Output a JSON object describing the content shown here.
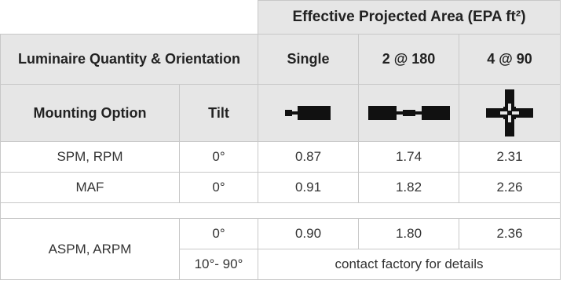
{
  "header": {
    "epa_title": "Effective Projected Area (EPA ft²)",
    "luminaire_label": "Luminaire Quantity & Orientation",
    "mounting_label": "Mounting Option",
    "tilt_label": "Tilt",
    "columns": [
      "Single",
      "2 @ 180",
      "4 @ 90"
    ]
  },
  "icons": [
    "single-luminaire-icon",
    "two-at-180-luminaire-icon",
    "four-at-90-luminaire-icon"
  ],
  "rows": [
    {
      "mounting": "SPM, RPM",
      "tilt": "0°",
      "values": [
        "0.87",
        "1.74",
        "2.31"
      ]
    },
    {
      "mounting": "MAF",
      "tilt": "0°",
      "values": [
        "0.91",
        "1.82",
        "2.26"
      ]
    }
  ],
  "adjustable": {
    "mounting": "ASPM, ARPM",
    "tilt_a": "0°",
    "values_a": [
      "0.90",
      "1.80",
      "2.36"
    ],
    "tilt_b": "10°- 90°",
    "note": "contact factory for details"
  },
  "colors": {
    "header_bg": "#e6e6e6",
    "border": "#c8c8c8",
    "icon": "#111111"
  }
}
